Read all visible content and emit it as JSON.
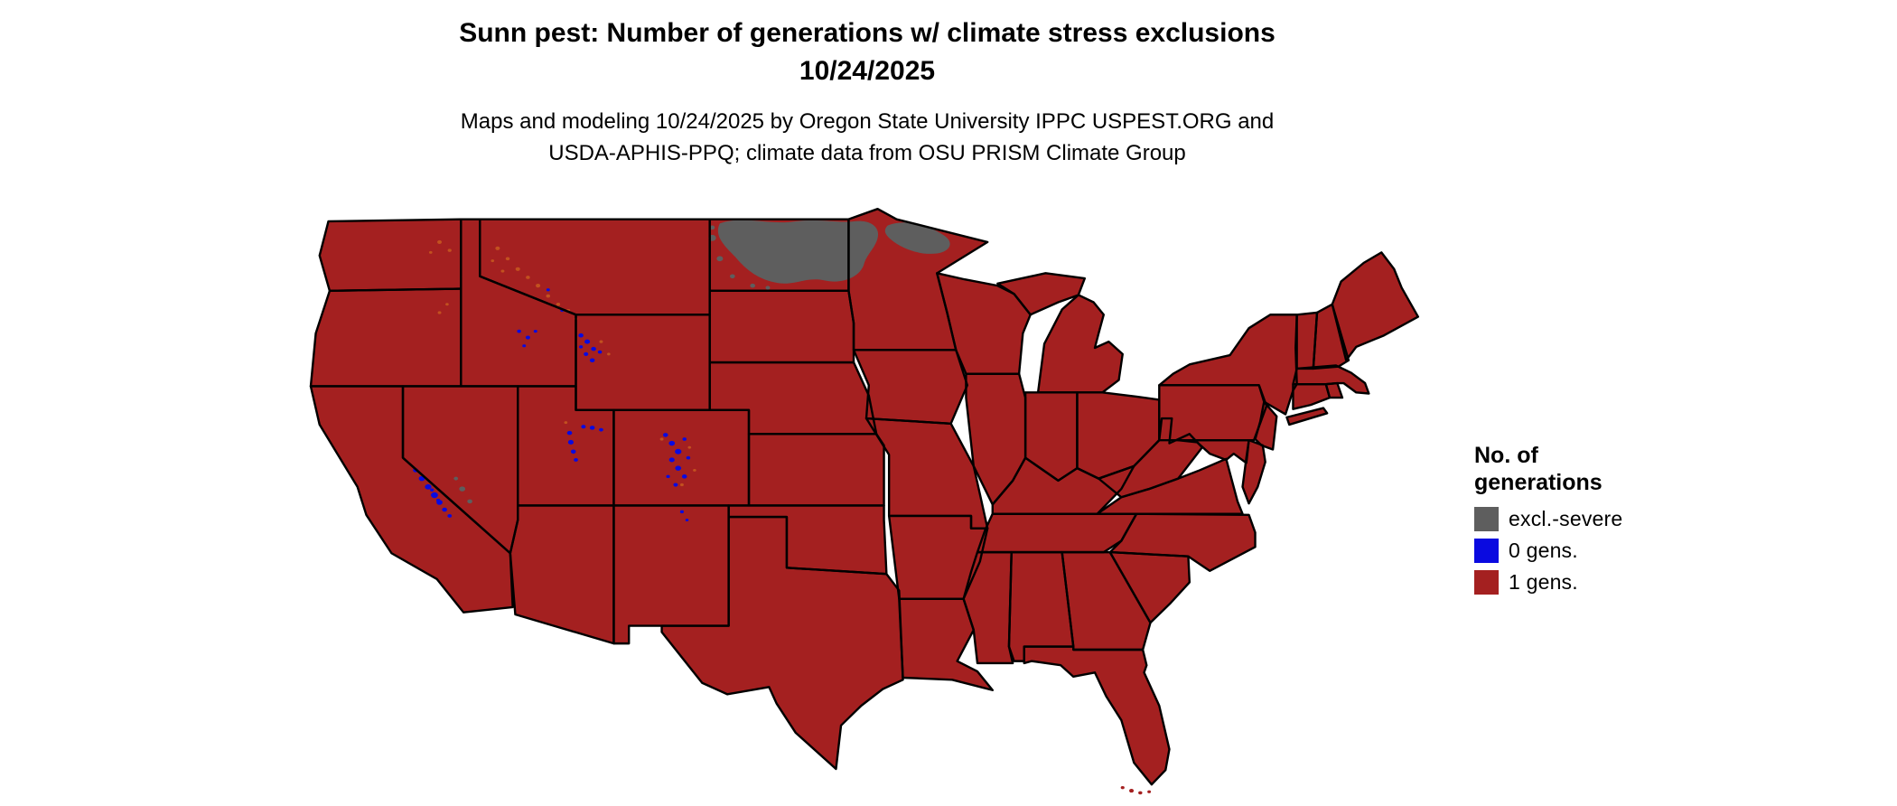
{
  "header": {
    "title_line1": "Sunn pest: Number of generations w/ climate stress exclusions",
    "title_line2": "10/24/2025",
    "subtitle_line1": "Maps and modeling 10/24/2025 by Oregon State University IPPC USPEST.ORG and",
    "subtitle_line2": "USDA-APHIS-PPQ; climate data from OSU PRISM Climate Group"
  },
  "legend": {
    "title_line1": "No. of",
    "title_line2": "generations",
    "items": [
      {
        "label": "excl.-severe",
        "color": "#5e5e5e"
      },
      {
        "label": "0 gens.",
        "color": "#0a0ae0"
      },
      {
        "label": "1 gens.",
        "color": "#a42020"
      }
    ]
  },
  "map": {
    "name": "Contiguous United States",
    "base_color": "#a42020",
    "border_color": "#000000",
    "speckle_color": "#c2511f",
    "regions": {
      "excl_severe": "eastern North Dakota and northwestern Minnesota",
      "zero_gens": "Sierra Nevada (CA), Greater Yellowstone (WY), Colorado Rockies, Uinta and Wasatch ranges (UT), central Idaho, northern New Mexico"
    }
  }
}
